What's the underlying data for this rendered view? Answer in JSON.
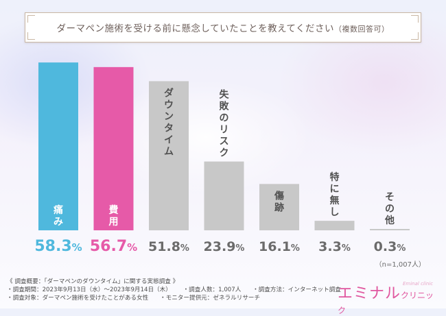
{
  "title": "ダーマペン施術を受ける前に懸念していたことを教えてください",
  "title_note": "（複数回答可）",
  "sample": "（n=1,007人）",
  "colors": {
    "blue": "#4fb8dd",
    "pink": "#e65aa8",
    "gray": "#c8c8c8",
    "gray_text": "#6b6b6b"
  },
  "chart_data": {
    "type": "bar",
    "title": "ダーマペン施術を受ける前に懸念していたことを教えてください（複数回答可）",
    "categories": [
      "痛み",
      "費用",
      "ダウンタイム",
      "失敗のリスク",
      "傷跡",
      "特に無し",
      "その他"
    ],
    "values": [
      58.3,
      56.7,
      51.8,
      23.9,
      16.1,
      3.3,
      0.3
    ],
    "value_labels": [
      "58.3%",
      "56.7%",
      "51.8%",
      "23.9%",
      "16.1%",
      "3.3%",
      "0.3%"
    ],
    "unit": "%",
    "ylim": [
      0,
      60
    ],
    "highlight": [
      0,
      1
    ],
    "xlabel": "",
    "ylabel": ""
  },
  "notes": {
    "heading": "《 調査概要：「ダーマペンのダウンタイム」に関する実態調査 》",
    "period": "・調査期間：2023年9月13日（水）〜2023年9月14日（木）",
    "people": "・調査人数：1,007人",
    "method": "・調査方法：インターネット調査",
    "target": "・調査対象：ダーマペン施術を受けたことがある女性",
    "provider": "・モニター提供元：ゼネラルリサーチ"
  },
  "logo": {
    "main": "エミナル",
    "sub": "クリニック",
    "en": "Eminal clinic"
  }
}
